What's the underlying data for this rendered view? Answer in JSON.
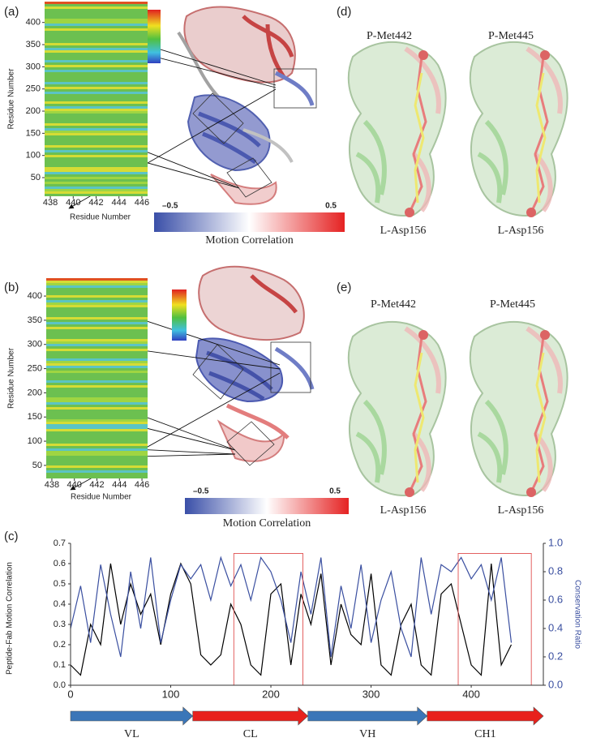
{
  "panel_labels": [
    "(a)",
    "(b)",
    "(c)",
    "(d)",
    "(e)"
  ],
  "colorbars": [
    {
      "min": {
        "value": -0.5,
        "label": "–0.5"
      },
      "max": 0.5,
      "label": "Motion Correlation"
    },
    {
      "min": {
        "value": -0.5,
        "label": "–0.5"
      },
      "max": 0.5,
      "label": "Motion Correlation"
    }
  ],
  "structure_labels": {
    "d": [
      "P-Met442",
      "P-Met445",
      "L-Asp156",
      "L-Asp156"
    ],
    "e": [
      "P-Met442",
      "P-Met445",
      "L-Asp156",
      "L-Asp156"
    ]
  },
  "chart_data": [
    {
      "type": "heatmap",
      "xlabel": "Residue Number",
      "ylabel": "Residue Number",
      "xlim": [
        437.5,
        446.5
      ],
      "xticks": [
        438,
        440,
        442,
        444,
        446
      ],
      "ylim": [
        8,
        447
      ],
      "yticks": [
        50,
        100,
        150,
        200,
        250,
        300,
        350,
        400
      ]
    },
    {
      "type": "heatmap",
      "xlabel": "Residue Number",
      "ylabel": "Residue Number",
      "xlim": [
        437.5,
        446.5
      ],
      "xticks": [
        438,
        440,
        442,
        444,
        446
      ],
      "ylim": [
        23,
        437
      ],
      "yticks": [
        50,
        100,
        150,
        200,
        250,
        300,
        350,
        400
      ]
    },
    {
      "type": "line",
      "ylabel": "Peptide-Fab Motion Correlation",
      "y2label": "Conservation Ratio",
      "xlim": [
        0,
        472
      ],
      "xticks": [
        0,
        100,
        200,
        300,
        400
      ],
      "ylim": [
        0,
        0.7
      ],
      "yticks": [
        {
          "value": 0,
          "label": "0.0"
        },
        0.1,
        0.2,
        0.3,
        0.4,
        0.5,
        0.6,
        0.7
      ],
      "y2lim": [
        0,
        1
      ],
      "y2ticks": [
        {
          "value": 0,
          "label": "0.0"
        },
        0.2,
        0.4,
        0.6,
        0.8,
        {
          "value": 1,
          "label": "1.0"
        }
      ],
      "x": [
        0,
        10,
        20,
        30,
        40,
        50,
        60,
        70,
        80,
        90,
        100,
        110,
        120,
        130,
        140,
        150,
        160,
        170,
        180,
        190,
        200,
        210,
        220,
        230,
        240,
        250,
        260,
        270,
        280,
        290,
        300,
        310,
        320,
        330,
        340,
        350,
        360,
        370,
        380,
        390,
        400,
        410,
        420,
        430,
        440
      ],
      "series": [
        {
          "name": "Peptide-Fab Motion Correlation",
          "color": "#000000",
          "values": [
            0.1,
            0.05,
            0.3,
            0.2,
            0.6,
            0.3,
            0.5,
            0.35,
            0.45,
            0.2,
            0.45,
            0.6,
            0.5,
            0.15,
            0.1,
            0.15,
            0.4,
            0.3,
            0.1,
            0.05,
            0.45,
            0.5,
            0.1,
            0.45,
            0.3,
            0.55,
            0.1,
            0.4,
            0.25,
            0.2,
            0.55,
            0.1,
            0.05,
            0.3,
            0.4,
            0.1,
            0.05,
            0.45,
            0.5,
            0.3,
            0.1,
            0.05,
            0.6,
            0.1,
            0.2
          ]
        },
        {
          "name": "Conservation Ratio",
          "color": "#3a4fa0",
          "axis": "y2",
          "values": [
            0.4,
            0.7,
            0.3,
            0.85,
            0.5,
            0.2,
            0.8,
            0.4,
            0.9,
            0.3,
            0.6,
            0.85,
            0.75,
            0.85,
            0.6,
            0.9,
            0.7,
            0.85,
            0.6,
            0.9,
            0.8,
            0.6,
            0.3,
            0.8,
            0.5,
            0.9,
            0.2,
            0.7,
            0.4,
            0.85,
            0.3,
            0.6,
            0.8,
            0.4,
            0.2,
            0.9,
            0.5,
            0.85,
            0.8,
            0.9,
            0.75,
            0.85,
            0.6,
            0.9,
            0.3
          ]
        }
      ],
      "highlights": [
        {
          "xrange": [
            163,
            232
          ],
          "yrange": [
            0,
            0.65
          ]
        },
        {
          "xrange": [
            387,
            460
          ],
          "yrange": [
            0,
            0.65
          ]
        }
      ],
      "highlight_color": "#e05050",
      "domains": [
        {
          "name": "VL",
          "start": 0,
          "end": 122,
          "color": "#3b76b8"
        },
        {
          "name": "CL",
          "start": 122,
          "end": 237,
          "color": "#e8211c"
        },
        {
          "name": "VH",
          "start": 237,
          "end": 356,
          "color": "#3b76b8"
        },
        {
          "name": "CH1",
          "start": 356,
          "end": 472,
          "color": "#e8211c"
        }
      ]
    }
  ]
}
